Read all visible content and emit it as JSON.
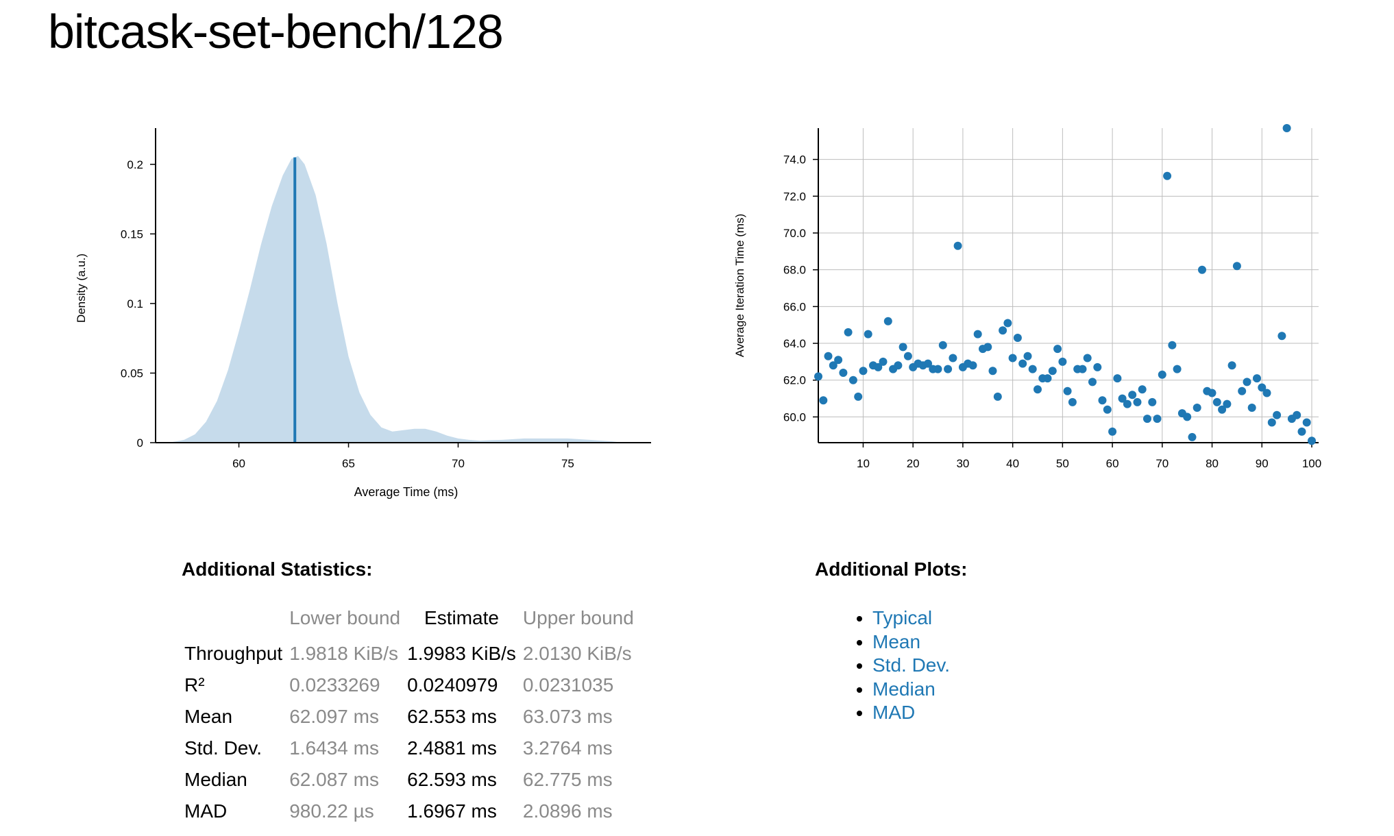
{
  "title": "bitcask-set-bench/128",
  "chart_data": [
    {
      "type": "area",
      "xlabel": "Average Time (ms)",
      "ylabel": "Density (a.u.)",
      "xlim": [
        56.2,
        78.8
      ],
      "ylim": [
        0,
        0.226
      ],
      "x_ticks": [
        "60",
        "65",
        "70",
        "75"
      ],
      "y_ticks": [
        "0",
        "0.05",
        "0.1",
        "0.15",
        "0.2"
      ],
      "fill_color": "#c6dbeb",
      "line_color": "#1f78b4",
      "mean_line": 62.553,
      "density": [
        [
          56.8,
          0.0
        ],
        [
          57.5,
          0.002
        ],
        [
          58.0,
          0.006
        ],
        [
          58.5,
          0.015
        ],
        [
          59.0,
          0.03
        ],
        [
          59.5,
          0.052
        ],
        [
          60.0,
          0.08
        ],
        [
          60.5,
          0.11
        ],
        [
          61.0,
          0.142
        ],
        [
          61.5,
          0.17
        ],
        [
          62.0,
          0.192
        ],
        [
          62.4,
          0.204
        ],
        [
          62.7,
          0.206
        ],
        [
          63.0,
          0.2
        ],
        [
          63.5,
          0.178
        ],
        [
          64.0,
          0.143
        ],
        [
          64.5,
          0.1
        ],
        [
          65.0,
          0.062
        ],
        [
          65.5,
          0.036
        ],
        [
          66.0,
          0.02
        ],
        [
          66.5,
          0.011
        ],
        [
          67.0,
          0.008
        ],
        [
          67.5,
          0.009
        ],
        [
          68.0,
          0.01
        ],
        [
          68.5,
          0.01
        ],
        [
          69.0,
          0.008
        ],
        [
          69.5,
          0.005
        ],
        [
          70.0,
          0.003
        ],
        [
          70.5,
          0.002
        ],
        [
          71.0,
          0.0015
        ],
        [
          71.5,
          0.0018
        ],
        [
          72.0,
          0.002
        ],
        [
          73.0,
          0.003
        ],
        [
          74.0,
          0.003
        ],
        [
          75.0,
          0.003
        ],
        [
          76.0,
          0.002
        ],
        [
          77.0,
          0.001
        ],
        [
          77.5,
          0.0
        ]
      ]
    },
    {
      "type": "scatter",
      "xlabel": "",
      "ylabel": "Average Iteration Time (ms)",
      "xlim": [
        1,
        100
      ],
      "ylim": [
        58.6,
        75.7
      ],
      "x_ticks": [
        "10",
        "20",
        "30",
        "40",
        "50",
        "60",
        "70",
        "80",
        "90",
        "100"
      ],
      "y_ticks": [
        "60.0",
        "62.0",
        "64.0",
        "66.0",
        "68.0",
        "70.0",
        "72.0",
        "74.0"
      ],
      "grid": true,
      "point_color": "#1f78b4",
      "points": [
        [
          1,
          62.2
        ],
        [
          2,
          60.9
        ],
        [
          3,
          63.3
        ],
        [
          4,
          62.8
        ],
        [
          5,
          63.1
        ],
        [
          6,
          62.4
        ],
        [
          7,
          64.6
        ],
        [
          8,
          62.0
        ],
        [
          9,
          61.1
        ],
        [
          10,
          62.5
        ],
        [
          11,
          64.5
        ],
        [
          12,
          62.8
        ],
        [
          13,
          62.7
        ],
        [
          14,
          63.0
        ],
        [
          15,
          65.2
        ],
        [
          16,
          62.6
        ],
        [
          17,
          62.8
        ],
        [
          18,
          63.8
        ],
        [
          19,
          63.3
        ],
        [
          20,
          62.7
        ],
        [
          21,
          62.9
        ],
        [
          22,
          62.8
        ],
        [
          23,
          62.9
        ],
        [
          24,
          62.6
        ],
        [
          25,
          62.6
        ],
        [
          26,
          63.9
        ],
        [
          27,
          62.6
        ],
        [
          28,
          63.2
        ],
        [
          29,
          69.3
        ],
        [
          30,
          62.7
        ],
        [
          31,
          62.9
        ],
        [
          32,
          62.8
        ],
        [
          33,
          64.5
        ],
        [
          34,
          63.7
        ],
        [
          35,
          63.8
        ],
        [
          36,
          62.5
        ],
        [
          37,
          61.1
        ],
        [
          38,
          64.7
        ],
        [
          39,
          65.1
        ],
        [
          40,
          63.2
        ],
        [
          41,
          64.3
        ],
        [
          42,
          62.9
        ],
        [
          43,
          63.3
        ],
        [
          44,
          62.6
        ],
        [
          45,
          61.5
        ],
        [
          46,
          62.1
        ],
        [
          47,
          62.1
        ],
        [
          48,
          62.5
        ],
        [
          49,
          63.7
        ],
        [
          50,
          63.0
        ],
        [
          51,
          61.4
        ],
        [
          52,
          60.8
        ],
        [
          53,
          62.6
        ],
        [
          54,
          62.6
        ],
        [
          55,
          63.2
        ],
        [
          56,
          61.9
        ],
        [
          57,
          62.7
        ],
        [
          58,
          60.9
        ],
        [
          59,
          60.4
        ],
        [
          60,
          59.2
        ],
        [
          61,
          62.1
        ],
        [
          62,
          61.0
        ],
        [
          63,
          60.7
        ],
        [
          64,
          61.2
        ],
        [
          65,
          60.8
        ],
        [
          66,
          61.5
        ],
        [
          67,
          59.9
        ],
        [
          68,
          60.8
        ],
        [
          69,
          59.9
        ],
        [
          70,
          62.3
        ],
        [
          71,
          73.1
        ],
        [
          72,
          63.9
        ],
        [
          73,
          62.6
        ],
        [
          74,
          60.2
        ],
        [
          75,
          60.0
        ],
        [
          76,
          58.9
        ],
        [
          77,
          60.5
        ],
        [
          78,
          68.0
        ],
        [
          79,
          61.4
        ],
        [
          80,
          61.3
        ],
        [
          81,
          60.8
        ],
        [
          82,
          60.4
        ],
        [
          83,
          60.7
        ],
        [
          84,
          62.8
        ],
        [
          85,
          68.2
        ],
        [
          86,
          61.4
        ],
        [
          87,
          61.9
        ],
        [
          88,
          60.5
        ],
        [
          89,
          62.1
        ],
        [
          90,
          61.6
        ],
        [
          91,
          61.3
        ],
        [
          92,
          59.7
        ],
        [
          93,
          60.1
        ],
        [
          94,
          64.4
        ],
        [
          95,
          75.7
        ],
        [
          96,
          59.9
        ],
        [
          97,
          60.1
        ],
        [
          98,
          59.2
        ],
        [
          99,
          59.7
        ],
        [
          100,
          58.7
        ]
      ]
    }
  ],
  "stats": {
    "heading": "Additional Statistics:",
    "columns": [
      "",
      "Lower bound",
      "Estimate",
      "Upper bound"
    ],
    "rows": [
      [
        "Throughput",
        "1.9818 KiB/s",
        "1.9983 KiB/s",
        "2.0130 KiB/s"
      ],
      [
        "R²",
        "0.0233269",
        "0.0240979",
        "0.0231035"
      ],
      [
        "Mean",
        "62.097 ms",
        "62.553 ms",
        "63.073 ms"
      ],
      [
        "Std. Dev.",
        "1.6434 ms",
        "2.4881 ms",
        "3.2764 ms"
      ],
      [
        "Median",
        "62.087 ms",
        "62.593 ms",
        "62.775 ms"
      ],
      [
        "MAD",
        "980.22 µs",
        "1.6967 ms",
        "2.0896 ms"
      ]
    ]
  },
  "plots": {
    "heading": "Additional Plots:",
    "links": [
      "Typical",
      "Mean",
      "Std. Dev.",
      "Median",
      "MAD"
    ]
  }
}
